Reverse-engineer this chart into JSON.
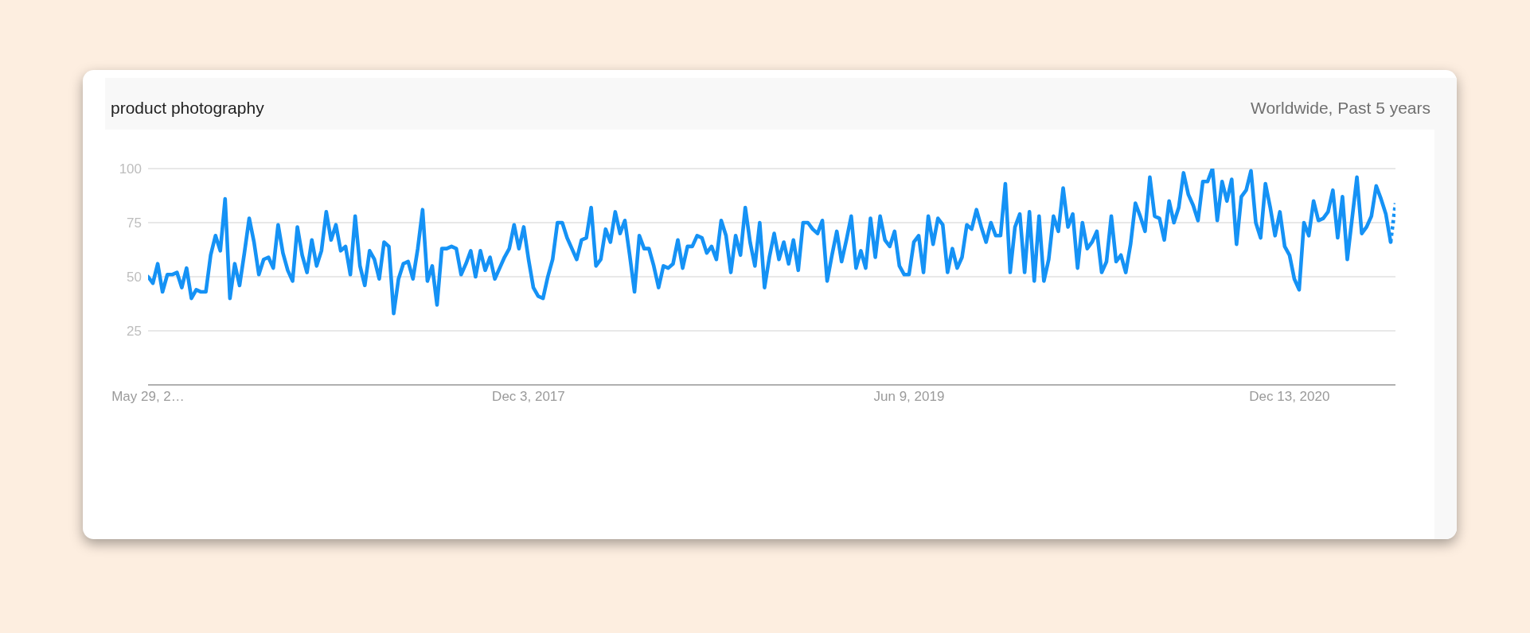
{
  "chart_data": {
    "type": "line",
    "title": "product photography",
    "subtitle": "Worldwide, Past 5 years",
    "x": [
      "2016-05-29",
      "2016-06-05",
      "2016-06-12",
      "2016-06-19",
      "2016-06-26",
      "2016-07-03",
      "2016-07-10",
      "2016-07-17",
      "2016-07-24",
      "2016-07-31",
      "2016-08-07",
      "2016-08-14",
      "2016-08-21",
      "2016-08-28",
      "2016-09-04",
      "2016-09-11",
      "2016-09-18",
      "2016-09-25",
      "2016-10-02",
      "2016-10-09",
      "2016-10-16",
      "2016-10-23",
      "2016-10-30",
      "2016-11-06",
      "2016-11-13",
      "2016-11-20",
      "2016-11-27",
      "2016-12-04",
      "2016-12-11",
      "2016-12-18",
      "2016-12-25",
      "2017-01-01",
      "2017-01-08",
      "2017-01-15",
      "2017-01-22",
      "2017-01-29",
      "2017-02-05",
      "2017-02-12",
      "2017-02-19",
      "2017-02-26",
      "2017-03-05",
      "2017-03-12",
      "2017-03-19",
      "2017-03-26",
      "2017-04-02",
      "2017-04-09",
      "2017-04-16",
      "2017-04-23",
      "2017-04-30",
      "2017-05-07",
      "2017-05-14",
      "2017-05-21",
      "2017-05-28",
      "2017-06-04",
      "2017-06-11",
      "2017-06-18",
      "2017-06-25",
      "2017-07-02",
      "2017-07-09",
      "2017-07-16",
      "2017-07-23",
      "2017-07-30",
      "2017-08-06",
      "2017-08-13",
      "2017-08-20",
      "2017-08-27",
      "2017-09-03",
      "2017-09-10",
      "2017-09-17",
      "2017-09-24",
      "2017-10-01",
      "2017-10-08",
      "2017-10-15",
      "2017-10-22",
      "2017-10-29",
      "2017-11-05",
      "2017-11-12",
      "2017-11-19",
      "2017-11-26",
      "2017-12-03",
      "2017-12-10",
      "2017-12-17",
      "2017-12-24",
      "2017-12-31",
      "2018-01-07",
      "2018-01-14",
      "2018-01-21",
      "2018-01-28",
      "2018-02-04",
      "2018-02-11",
      "2018-02-18",
      "2018-02-25",
      "2018-03-04",
      "2018-03-11",
      "2018-03-18",
      "2018-03-25",
      "2018-04-01",
      "2018-04-08",
      "2018-04-15",
      "2018-04-22",
      "2018-04-29",
      "2018-05-06",
      "2018-05-13",
      "2018-05-20",
      "2018-05-27",
      "2018-06-03",
      "2018-06-10",
      "2018-06-17",
      "2018-06-24",
      "2018-07-01",
      "2018-07-08",
      "2018-07-15",
      "2018-07-22",
      "2018-07-29",
      "2018-08-05",
      "2018-08-12",
      "2018-08-19",
      "2018-08-26",
      "2018-09-02",
      "2018-09-09",
      "2018-09-16",
      "2018-09-23",
      "2018-09-30",
      "2018-10-07",
      "2018-10-14",
      "2018-10-21",
      "2018-10-28",
      "2018-11-04",
      "2018-11-11",
      "2018-11-18",
      "2018-11-25",
      "2018-12-02",
      "2018-12-09",
      "2018-12-16",
      "2018-12-23",
      "2018-12-30",
      "2019-01-06",
      "2019-01-13",
      "2019-01-20",
      "2019-01-27",
      "2019-02-03",
      "2019-02-10",
      "2019-02-17",
      "2019-02-24",
      "2019-03-03",
      "2019-03-10",
      "2019-03-17",
      "2019-03-24",
      "2019-03-31",
      "2019-04-07",
      "2019-04-14",
      "2019-04-21",
      "2019-04-28",
      "2019-05-05",
      "2019-05-12",
      "2019-05-19",
      "2019-05-26",
      "2019-06-02",
      "2019-06-09",
      "2019-06-16",
      "2019-06-23",
      "2019-06-30",
      "2019-07-07",
      "2019-07-14",
      "2019-07-21",
      "2019-07-28",
      "2019-08-04",
      "2019-08-11",
      "2019-08-18",
      "2019-08-25",
      "2019-09-01",
      "2019-09-08",
      "2019-09-15",
      "2019-09-22",
      "2019-09-29",
      "2019-10-06",
      "2019-10-13",
      "2019-10-20",
      "2019-10-27",
      "2019-11-03",
      "2019-11-10",
      "2019-11-17",
      "2019-11-24",
      "2019-12-01",
      "2019-12-08",
      "2019-12-15",
      "2019-12-22",
      "2019-12-29",
      "2020-01-05",
      "2020-01-12",
      "2020-01-19",
      "2020-01-26",
      "2020-02-02",
      "2020-02-09",
      "2020-02-16",
      "2020-02-23",
      "2020-03-01",
      "2020-03-08",
      "2020-03-15",
      "2020-03-22",
      "2020-03-29",
      "2020-04-05",
      "2020-04-12",
      "2020-04-19",
      "2020-04-26",
      "2020-05-03",
      "2020-05-10",
      "2020-05-17",
      "2020-05-24",
      "2020-05-31",
      "2020-06-07",
      "2020-06-14",
      "2020-06-21",
      "2020-06-28",
      "2020-07-05",
      "2020-07-12",
      "2020-07-19",
      "2020-07-26",
      "2020-08-02",
      "2020-08-09",
      "2020-08-16",
      "2020-08-23",
      "2020-08-30",
      "2020-09-06",
      "2020-09-13",
      "2020-09-20",
      "2020-09-27",
      "2020-10-04",
      "2020-10-11",
      "2020-10-18",
      "2020-10-25",
      "2020-11-01",
      "2020-11-08",
      "2020-11-15",
      "2020-11-22",
      "2020-11-29",
      "2020-12-06",
      "2020-12-13",
      "2020-12-20",
      "2020-12-27",
      "2021-01-03",
      "2021-01-10",
      "2021-01-17",
      "2021-01-24",
      "2021-01-31",
      "2021-02-07",
      "2021-02-14",
      "2021-02-21",
      "2021-02-28",
      "2021-03-07",
      "2021-03-14",
      "2021-03-21",
      "2021-03-28",
      "2021-04-04",
      "2021-04-11",
      "2021-04-18",
      "2021-04-25",
      "2021-05-02",
      "2021-05-09"
    ],
    "series": [
      {
        "color": "#1592f5",
        "values": [
          50,
          47,
          56,
          43,
          51,
          51,
          52,
          45,
          54,
          40,
          44,
          43,
          43,
          60,
          69,
          62,
          86,
          40,
          56,
          46,
          61,
          77,
          66,
          51,
          58,
          59,
          54,
          74,
          61,
          53,
          48,
          73,
          60,
          52,
          67,
          55,
          62,
          80,
          67,
          74,
          62,
          64,
          51,
          78,
          55,
          46,
          62,
          58,
          49,
          66,
          64,
          33,
          49,
          56,
          57,
          49,
          63,
          81,
          48,
          55,
          37,
          63,
          63,
          64,
          63,
          51,
          56,
          62,
          50,
          62,
          53,
          59,
          49,
          54,
          59,
          63,
          74,
          63,
          73,
          58,
          45,
          41,
          40,
          50,
          58,
          75,
          75,
          68,
          63,
          58,
          67,
          68,
          82,
          55,
          58,
          72,
          66,
          80,
          70,
          76,
          60,
          43,
          69,
          63,
          63,
          55,
          45,
          55,
          54,
          56,
          67,
          54,
          64,
          64,
          69,
          68,
          61,
          64,
          58,
          76,
          69,
          52,
          69,
          60,
          82,
          66,
          55,
          75,
          45,
          59,
          70,
          58,
          66,
          56,
          67,
          53,
          75,
          75,
          72,
          70,
          76,
          48,
          60,
          71,
          57,
          67,
          78,
          54,
          62,
          54,
          77,
          59,
          78,
          67,
          64,
          71,
          55,
          51,
          51,
          66,
          69,
          52,
          78,
          65,
          77,
          74,
          52,
          63,
          54,
          59,
          74,
          72,
          81,
          73,
          66,
          75,
          69,
          69,
          93,
          52,
          73,
          79,
          52,
          80,
          48,
          78,
          48,
          58,
          78,
          71,
          91,
          73,
          79,
          54,
          75,
          63,
          66,
          71,
          52,
          57,
          78,
          57,
          60,
          52,
          65,
          84,
          78,
          71,
          96,
          78,
          77,
          67,
          85,
          75,
          82,
          98,
          88,
          83,
          76,
          94,
          94,
          100,
          76,
          94,
          85,
          95,
          65,
          87,
          90,
          99,
          75,
          68,
          93,
          82,
          69,
          80,
          64,
          60,
          49,
          44,
          75,
          69,
          85,
          76,
          77,
          80,
          90,
          68,
          87,
          58,
          77,
          96,
          70,
          73,
          78,
          92,
          86,
          79,
          66
        ]
      },
      {
        "color": "#1592f5",
        "x": [
          "2021-05-09",
          "2021-05-16"
        ],
        "values": [
          66,
          84
        ],
        "line_style": "dotted"
      }
    ],
    "xlim": [
      "2016-05-29",
      "2021-05-16"
    ],
    "xticks": [
      {
        "value": "2016-05-29",
        "label": "May 29, 2…"
      },
      {
        "value": "2017-12-03",
        "label": "Dec 3, 2017"
      },
      {
        "value": "2019-06-09",
        "label": "Jun 9, 2019"
      },
      {
        "value": "2020-12-13",
        "label": "Dec 13, 2020"
      }
    ],
    "ylim": [
      0,
      100
    ],
    "yticks": [
      25,
      50,
      75,
      100
    ],
    "grid": "y",
    "line_style": "solid"
  }
}
